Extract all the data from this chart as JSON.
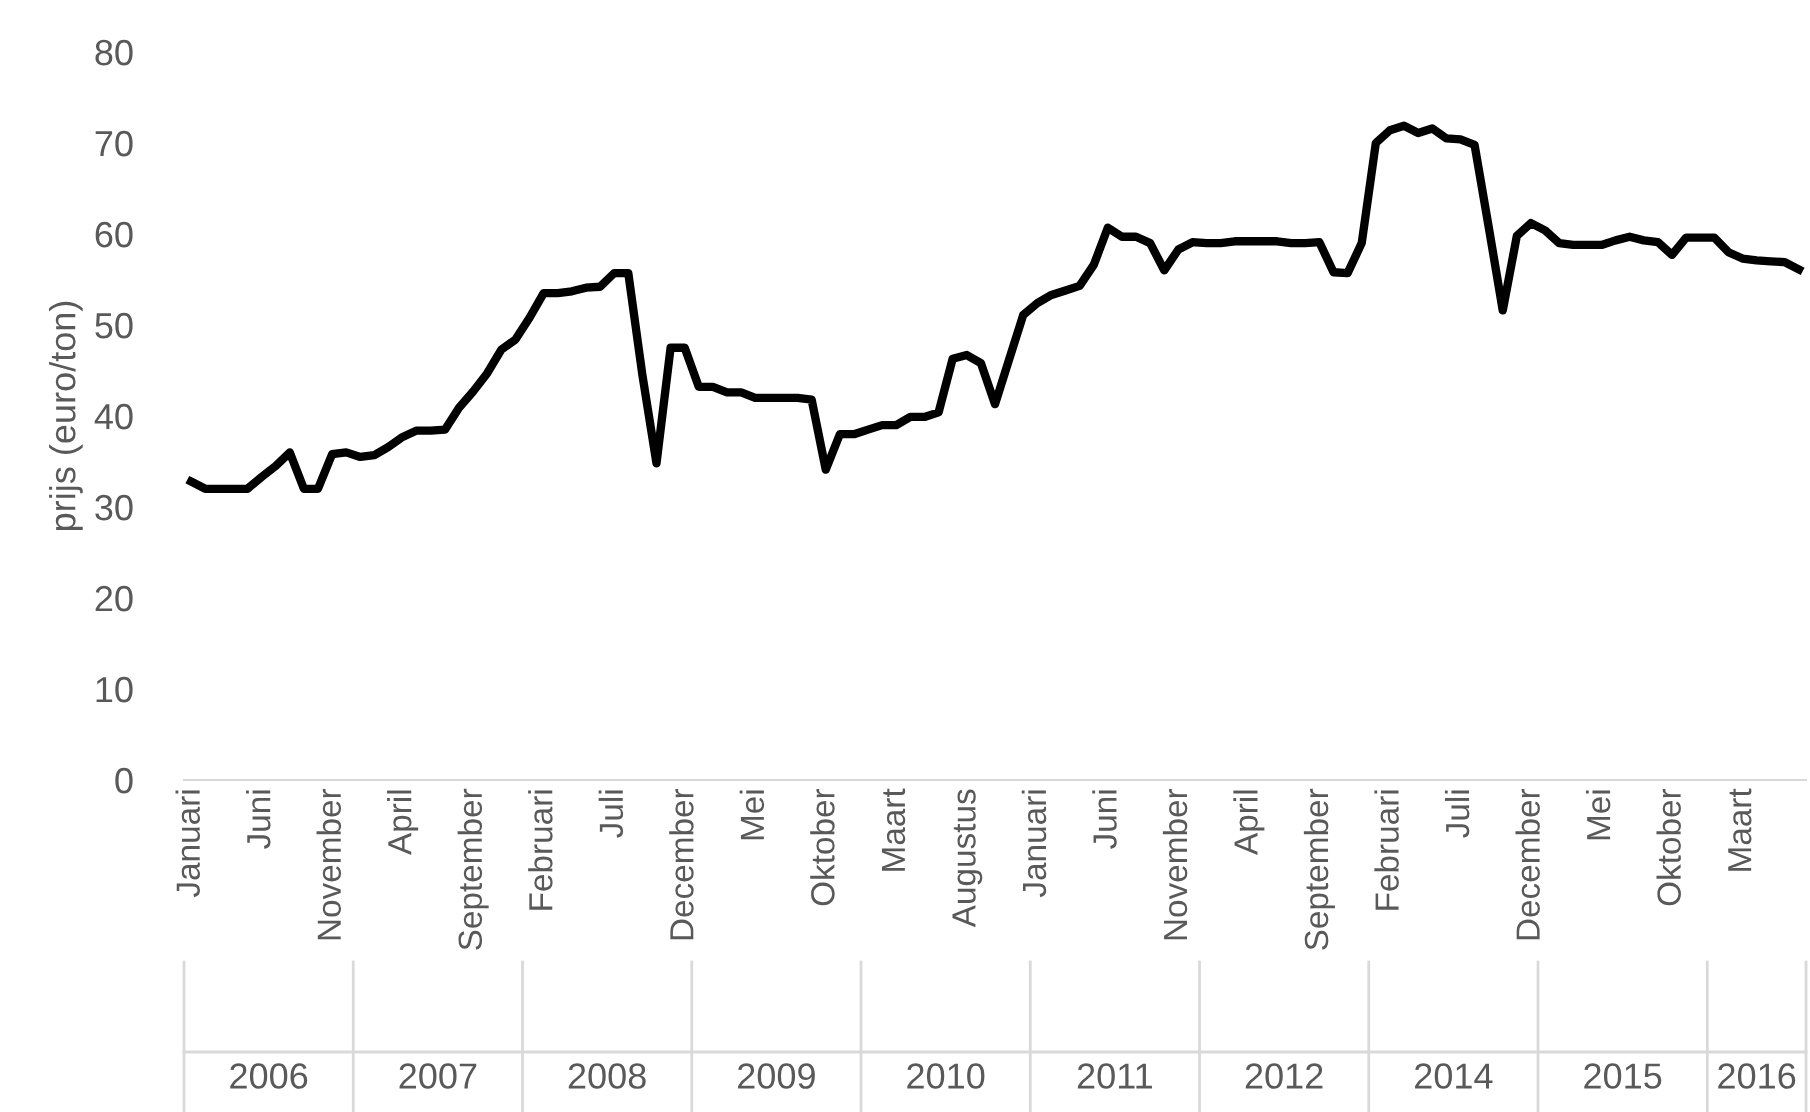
{
  "chart_data": {
    "type": "line",
    "ylabel": "prijs (euro/ton)",
    "categories": [
      "Januari",
      null,
      null,
      null,
      null,
      "Juni",
      null,
      null,
      null,
      null,
      "November",
      null,
      null,
      null,
      null,
      "April",
      null,
      null,
      null,
      null,
      "September",
      null,
      null,
      null,
      null,
      "Februari",
      null,
      null,
      null,
      null,
      "Juli",
      null,
      null,
      null,
      null,
      "December",
      null,
      null,
      null,
      null,
      "Mei",
      null,
      null,
      null,
      null,
      "Oktober",
      null,
      null,
      null,
      null,
      "Maart",
      null,
      null,
      null,
      null,
      "Augustus",
      null,
      null,
      null,
      null,
      "Januari",
      null,
      null,
      null,
      null,
      "Juni",
      null,
      null,
      null,
      null,
      "November",
      null,
      null,
      null,
      null,
      "April",
      null,
      null,
      null,
      null,
      "September",
      null,
      null,
      null,
      null,
      "Februari",
      null,
      null,
      null,
      null,
      "Juli",
      null,
      null,
      null,
      null,
      "December",
      null,
      null,
      null,
      null,
      "Mei",
      null,
      null,
      null,
      null,
      "Oktober",
      null,
      null,
      null,
      null,
      "Maart",
      null,
      null,
      null,
      null
    ],
    "annotations": [
      "2006",
      "2007",
      "2008",
      "2009",
      "2010",
      "2011",
      "2012",
      "2014",
      "2015",
      "2016"
    ],
    "series": [
      {
        "color": "#000000",
        "values": [
          32.8,
          32,
          32,
          32,
          32,
          33.3,
          34.5,
          36,
          32,
          32,
          35.8,
          36,
          35.5,
          35.7,
          36.6,
          37.7,
          38.4,
          38.4,
          38.5,
          40.9,
          42.7,
          44.7,
          47.3,
          48.4,
          50.8,
          53.5,
          53.5,
          53.7,
          54.1,
          54.2,
          55.7,
          55.7,
          44.5,
          34.8,
          47.5,
          47.5,
          43.2,
          43.2,
          42.6,
          42.6,
          42,
          42,
          42,
          42,
          41.8,
          34.1,
          38,
          38,
          38.5,
          39,
          39,
          39.9,
          39.9,
          40.4,
          46.3,
          46.7,
          45.8,
          41.3,
          46.2,
          51.1,
          52.4,
          53.3,
          53.8,
          54.3,
          56.6,
          60.7,
          59.7,
          59.7,
          59,
          56,
          58.3,
          59.1,
          59,
          59,
          59.2,
          59.2,
          59.2,
          59.2,
          59,
          59,
          59.1,
          55.8,
          55.7,
          59,
          70,
          71.4,
          71.9,
          71.1,
          71.6,
          70.5,
          70.4,
          69.8,
          60.8,
          51.6,
          59.8,
          61.2,
          60.4,
          59,
          58.8,
          58.8,
          58.8,
          59.3,
          59.7,
          59.3,
          59.1,
          57.7,
          59.6,
          59.6,
          59.6,
          58,
          57.3,
          57.1,
          57,
          56.9,
          56.1
        ]
      }
    ],
    "ylim": [
      0,
      80
    ],
    "yticks": [
      0,
      10,
      20,
      30,
      40,
      50,
      60,
      70,
      80
    ],
    "grid": false,
    "legend": false,
    "marker": "none",
    "line_style": "solid"
  }
}
